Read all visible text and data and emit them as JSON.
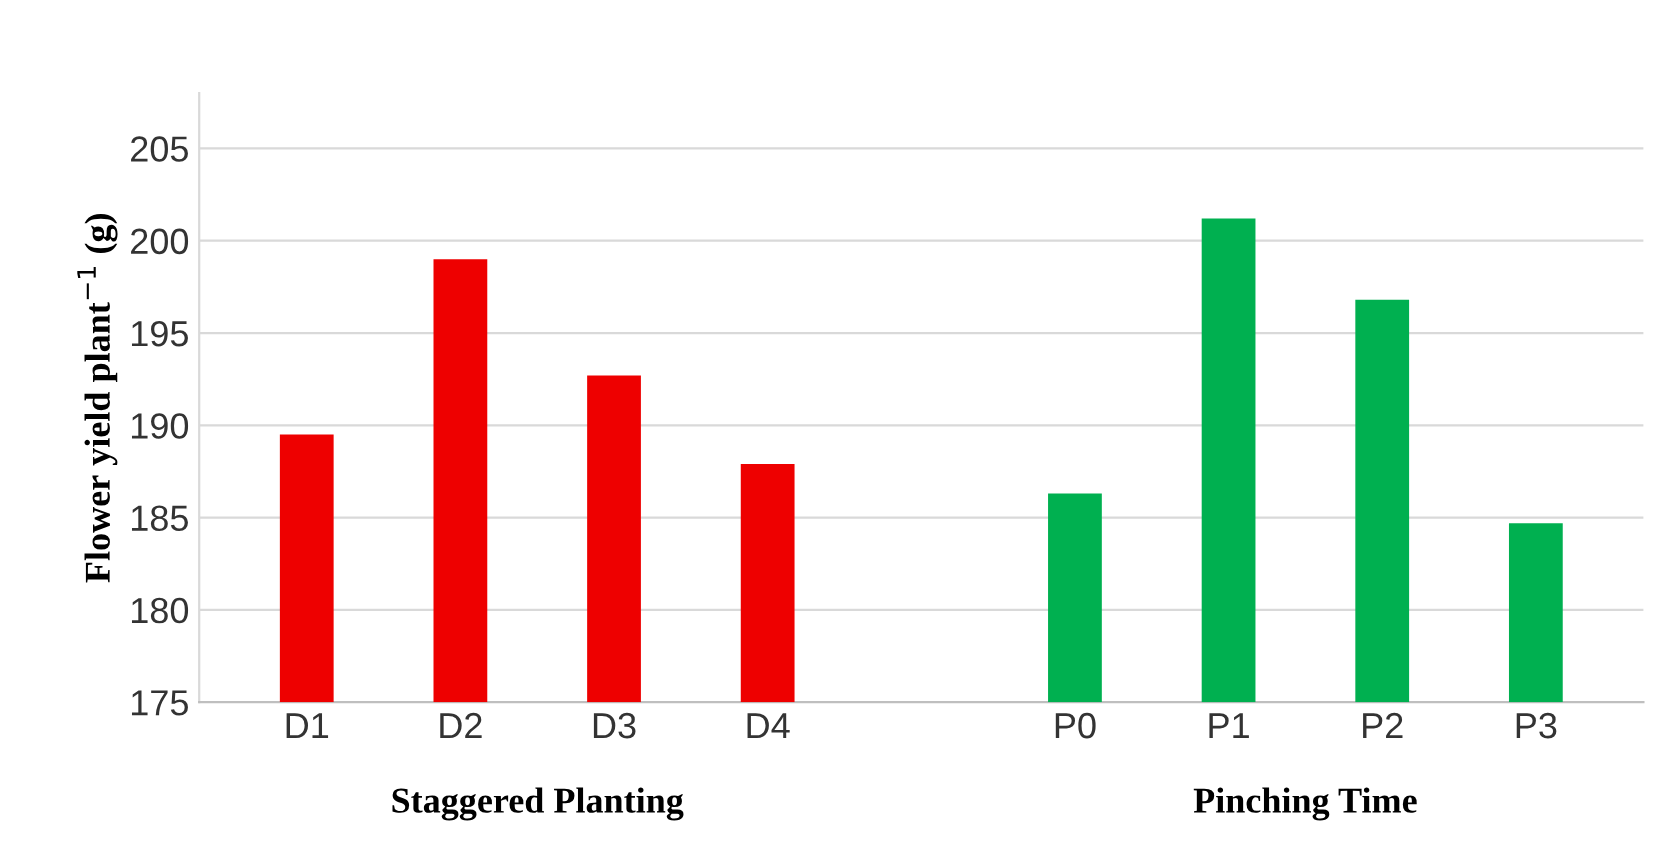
{
  "chart_data": {
    "type": "bar",
    "ylabel": "Flower yield plant$^{−1}$ (g)",
    "categories": [
      "D1",
      "D2",
      "D3",
      "D4",
      null,
      "P0",
      "P1",
      "P2",
      "P3"
    ],
    "values": [
      189.5,
      199.0,
      192.7,
      187.9,
      null,
      186.3,
      201.2,
      196.8,
      184.7
    ],
    "colors": [
      "#ee0000",
      "#ee0000",
      "#ee0000",
      "#ee0000",
      "#ee0000",
      "#00b050",
      "#00b050",
      "#00b050",
      "#00b050"
    ],
    "ylim": [
      175,
      208
    ],
    "yticks": [
      175,
      180,
      185,
      190,
      195,
      200,
      205
    ],
    "grid": "y",
    "annotations": [
      "Staggered Planting",
      "Pinching Time"
    ]
  }
}
